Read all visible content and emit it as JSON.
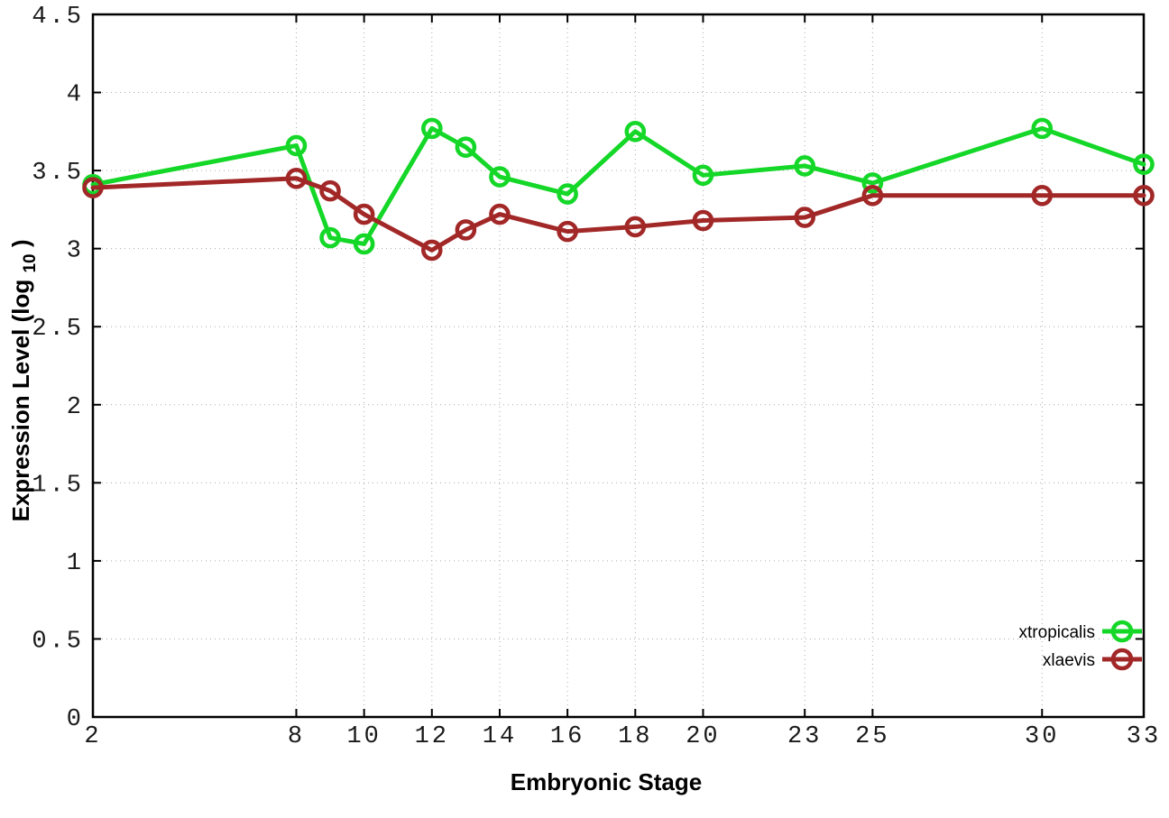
{
  "chart_data": {
    "type": "line",
    "x": [
      2,
      8,
      9,
      10,
      12,
      13,
      14,
      16,
      18,
      20,
      23,
      25,
      30,
      33
    ],
    "series": [
      {
        "name": "xtropicalis",
        "color": "#14d728",
        "values": [
          3.41,
          3.66,
          3.07,
          3.03,
          3.77,
          3.65,
          3.46,
          3.35,
          3.75,
          3.47,
          3.53,
          3.42,
          3.77,
          3.54
        ]
      },
      {
        "name": "xlaevis",
        "color": "#a22828",
        "values": [
          3.39,
          3.45,
          3.37,
          3.22,
          2.99,
          3.12,
          3.22,
          3.11,
          3.14,
          3.18,
          3.2,
          3.34,
          3.34,
          3.34
        ]
      }
    ],
    "title": "",
    "xlabel": "Embryonic Stage",
    "ylabel": "Expression Level (log10)",
    "ylabel_parts": {
      "prefix": "Expression Level (log",
      "sub": "10",
      "suffix": ")"
    },
    "xlim": [
      2,
      33
    ],
    "ylim": [
      0,
      4.5
    ],
    "x_ticks": [
      2,
      8,
      10,
      12,
      14,
      16,
      18,
      20,
      23,
      25,
      30,
      33
    ],
    "y_ticks": [
      0,
      0.5,
      1,
      1.5,
      2,
      2.5,
      3,
      3.5,
      4,
      4.5
    ],
    "grid": true,
    "legend_position": "inside-bottom-right",
    "marker": "open-circle",
    "colors": {
      "border": "#000000",
      "grid": "#aaaaaa",
      "tick_text": "#1a1a1a"
    }
  }
}
